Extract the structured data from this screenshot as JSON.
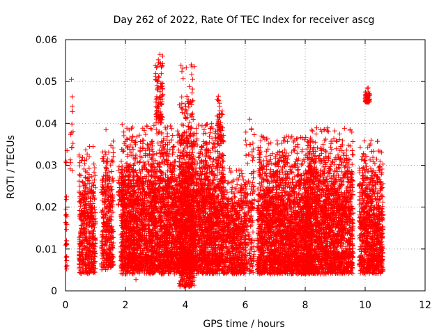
{
  "chart_data": {
    "type": "scatter",
    "title": "Day 262 of 2022, Rate Of TEC Index for receiver ascg",
    "xlabel": "GPS time / hours",
    "ylabel": "ROTI / TECUs",
    "xlim": [
      0,
      12
    ],
    "ylim": [
      0,
      0.06
    ],
    "grid": true,
    "marker": "+",
    "series_color": "#ff0000",
    "x_ticks": [
      0,
      2,
      4,
      6,
      8,
      10,
      12
    ],
    "x_tick_labels": [
      "0",
      "2",
      "4",
      "6",
      "8",
      "10",
      "12"
    ],
    "y_ticks": [
      0,
      0.01,
      0.02,
      0.03,
      0.04,
      0.05,
      0.06
    ],
    "y_tick_labels": [
      "0",
      "0.01",
      "0.02",
      "0.03",
      "0.04",
      "0.05",
      "0.06"
    ],
    "series": [
      {
        "name": "ROTI",
        "density_profile": [
          {
            "x_start": 0.0,
            "x_end": 0.05,
            "y_min": 0.005,
            "y_max": 0.034,
            "density": 0.5
          },
          {
            "x_start": 0.15,
            "x_end": 0.25,
            "y_min": 0.028,
            "y_max": 0.051,
            "density": 0.15
          },
          {
            "x_start": 0.45,
            "x_end": 1.0,
            "y_min": 0.004,
            "y_max": 0.035,
            "density": 1.0
          },
          {
            "x_start": 1.2,
            "x_end": 1.6,
            "y_min": 0.005,
            "y_max": 0.038,
            "density": 1.0
          },
          {
            "x_start": 1.75,
            "x_end": 2.0,
            "y_min": 0.02,
            "y_max": 0.031,
            "density": 0.25
          },
          {
            "x_start": 1.85,
            "x_end": 5.3,
            "y_min": 0.004,
            "y_max": 0.04,
            "density": 1.5
          },
          {
            "x_start": 3.0,
            "x_end": 3.25,
            "y_min": 0.04,
            "y_max": 0.057,
            "density": 0.4
          },
          {
            "x_start": 3.8,
            "x_end": 4.3,
            "y_min": 0.001,
            "y_max": 0.054,
            "density": 1.4
          },
          {
            "x_start": 5.05,
            "x_end": 5.25,
            "y_min": 0.035,
            "y_max": 0.047,
            "density": 0.3
          },
          {
            "x_start": 5.3,
            "x_end": 6.0,
            "y_min": 0.004,
            "y_max": 0.03,
            "density": 1.0
          },
          {
            "x_start": 6.0,
            "x_end": 6.3,
            "y_min": 0.004,
            "y_max": 0.041,
            "density": 0.6
          },
          {
            "x_start": 6.4,
            "x_end": 8.2,
            "y_min": 0.004,
            "y_max": 0.037,
            "density": 1.4
          },
          {
            "x_start": 8.0,
            "x_end": 9.6,
            "y_min": 0.004,
            "y_max": 0.039,
            "density": 1.4
          },
          {
            "x_start": 9.8,
            "x_end": 10.6,
            "y_min": 0.004,
            "y_max": 0.036,
            "density": 1.2
          },
          {
            "x_start": 10.0,
            "x_end": 10.15,
            "y_min": 0.045,
            "y_max": 0.049,
            "density": 0.4
          }
        ],
        "points": [
          [
            0.05,
            0.0335
          ],
          [
            0.2,
            0.0505
          ],
          [
            0.25,
            0.038
          ],
          [
            3.15,
            0.0565
          ],
          [
            3.1,
            0.0545
          ],
          [
            3.12,
            0.051
          ],
          [
            4.2,
            0.054
          ],
          [
            4.22,
            0.0535
          ],
          [
            4.25,
            0.0455
          ],
          [
            5.1,
            0.0465
          ],
          [
            5.15,
            0.043
          ],
          [
            6.15,
            0.041
          ],
          [
            6.2,
            0.0385
          ],
          [
            10.1,
            0.0485
          ],
          [
            10.15,
            0.047
          ],
          [
            10.2,
            0.036
          ],
          [
            2.95,
            0.0395
          ],
          [
            3.05,
            0.0375
          ],
          [
            3.9,
            0.0435
          ],
          [
            4.0,
            0.0415
          ],
          [
            4.3,
            0.0375
          ],
          [
            4.6,
            0.0375
          ],
          [
            4.8,
            0.0355
          ],
          [
            7.75,
            0.035
          ],
          [
            9.5,
            0.0385
          ],
          [
            8.55,
            0.038
          ],
          [
            1.35,
            0.0385
          ],
          [
            0.8,
            0.0345
          ],
          [
            4.05,
            0.002
          ],
          [
            4.15,
            0.003
          ],
          [
            2.35,
            0.0027
          ],
          [
            6.45,
            0.0045
          ],
          [
            10.6,
            0.005
          ],
          [
            0.05,
            0.006
          ]
        ]
      }
    ]
  }
}
